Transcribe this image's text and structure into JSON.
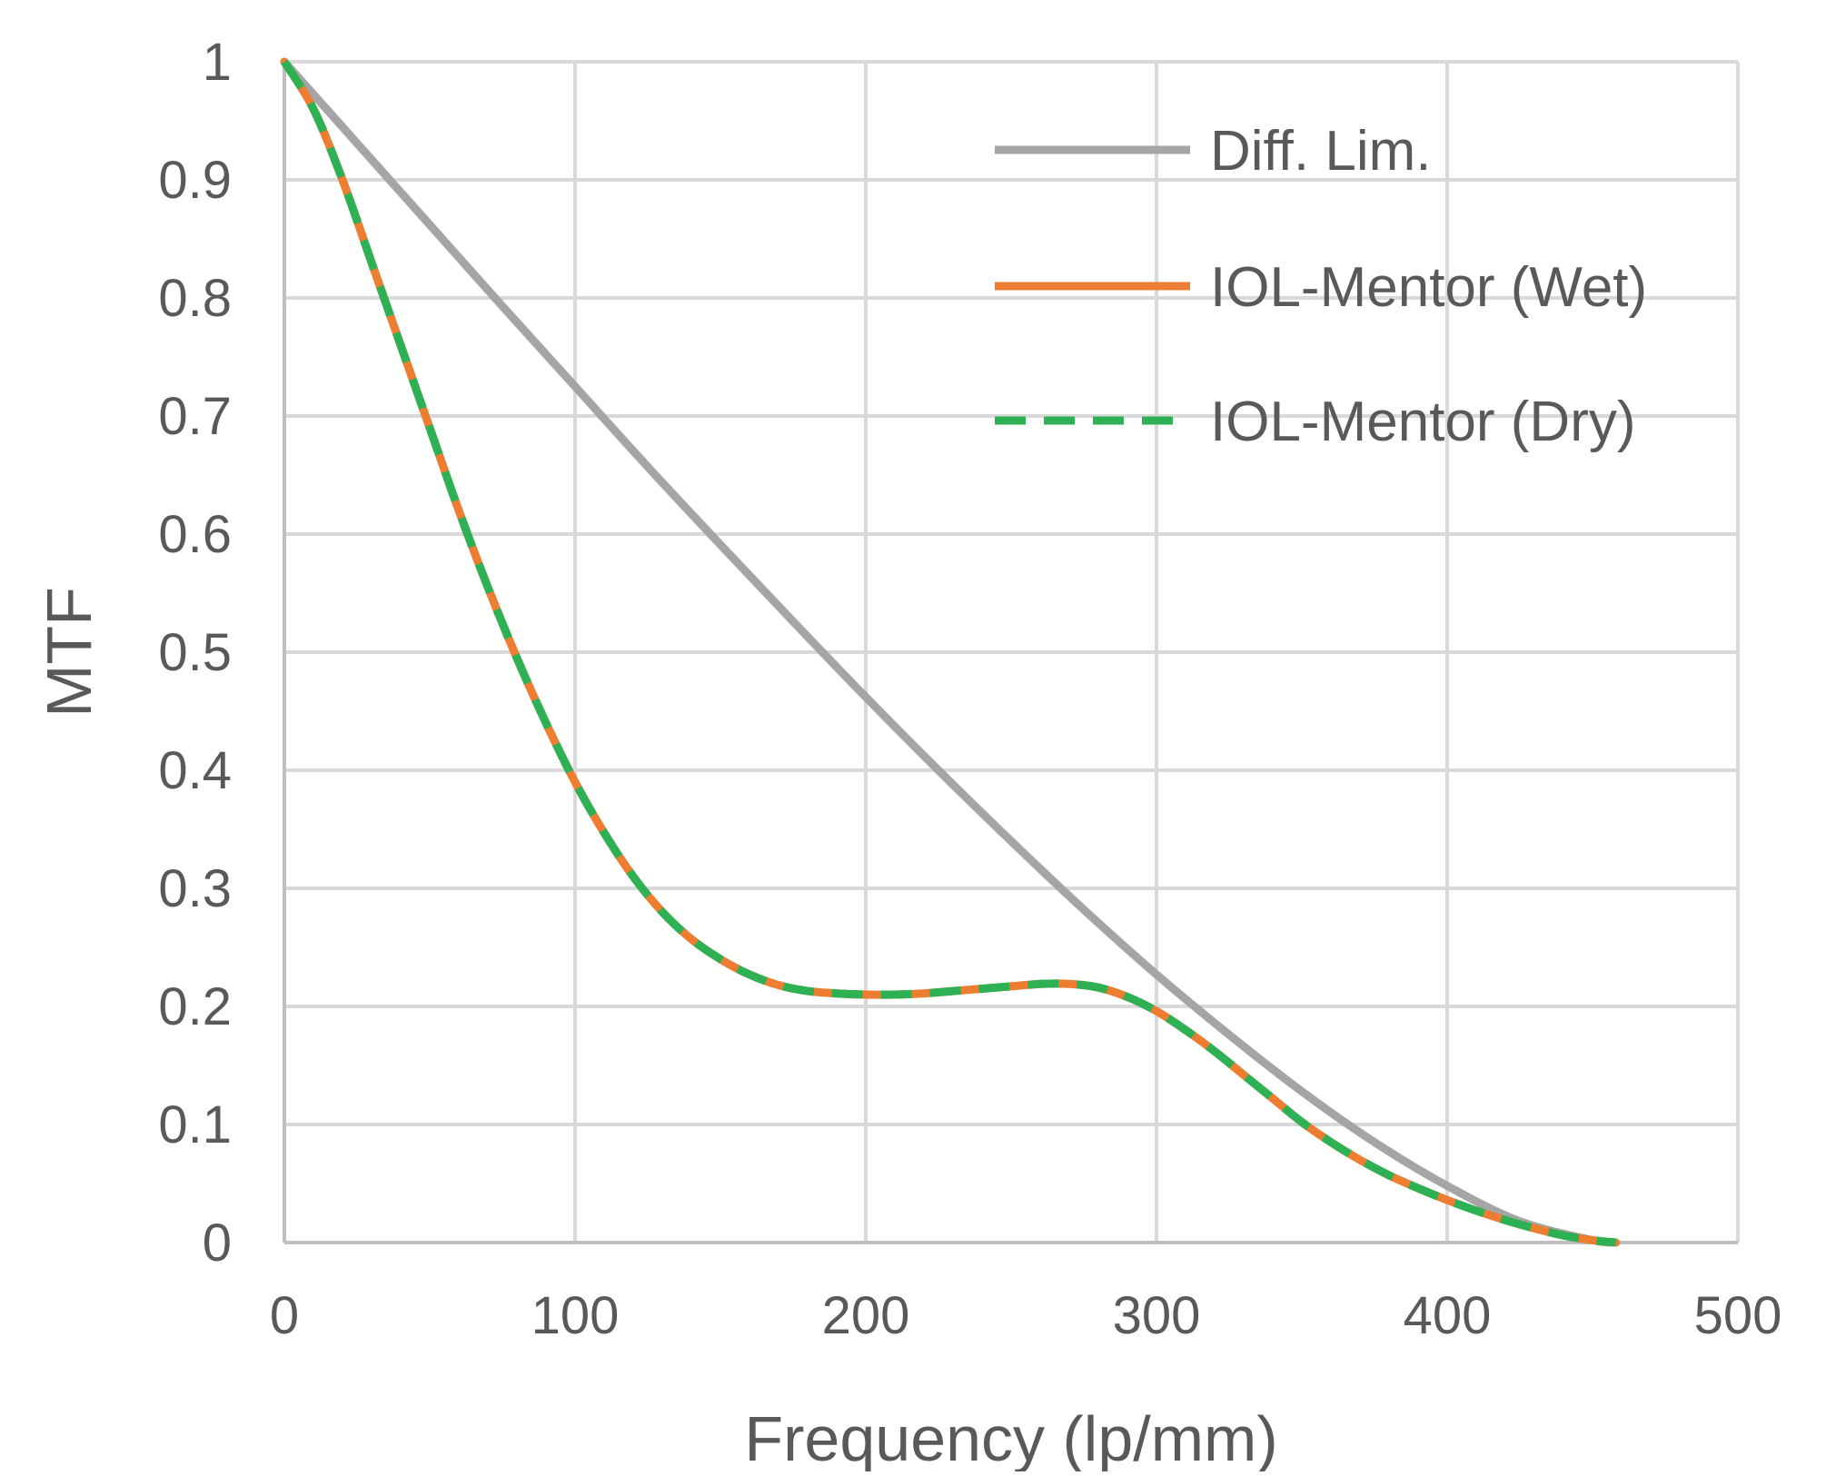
{
  "chart_data": {
    "type": "line",
    "title": "",
    "xlabel": "Frequency (lp/mm)",
    "ylabel": "MTF",
    "xlim": [
      0,
      500
    ],
    "ylim": [
      0,
      1
    ],
    "x_ticks": [
      "0",
      "100",
      "200",
      "300",
      "400",
      "500"
    ],
    "y_ticks": [
      "0",
      "0.1",
      "0.2",
      "0.3",
      "0.4",
      "0.5",
      "0.6",
      "0.7",
      "0.8",
      "0.9",
      "1"
    ],
    "grid": true,
    "legend_position": "top-right",
    "series": [
      {
        "name": "Diff. Lim.",
        "color": "#a5a5a5",
        "style": "solid",
        "x": [
          0,
          25,
          50,
          75,
          100,
          125,
          150,
          175,
          200,
          225,
          250,
          275,
          300,
          325,
          350,
          375,
          400,
          425,
          450,
          458
        ],
        "y": [
          1,
          0.931,
          0.862,
          0.793,
          0.725,
          0.657,
          0.591,
          0.526,
          0.462,
          0.4,
          0.34,
          0.282,
          0.227,
          0.176,
          0.128,
          0.085,
          0.048,
          0.018,
          0.002,
          0
        ]
      },
      {
        "name": "IOL-Mentor (Wet)",
        "color": "#ed7d31",
        "style": "solid",
        "x": [
          0,
          10,
          20,
          30,
          40,
          50,
          60,
          70,
          80,
          90,
          100,
          110,
          120,
          130,
          140,
          150,
          160,
          170,
          180,
          190,
          200,
          210,
          220,
          230,
          240,
          250,
          260,
          270,
          280,
          290,
          300,
          310,
          320,
          330,
          340,
          350,
          360,
          370,
          380,
          390,
          400,
          410,
          420,
          430,
          440,
          450,
          458
        ],
        "y": [
          1,
          0.96,
          0.9,
          0.83,
          0.76,
          0.69,
          0.62,
          0.555,
          0.495,
          0.44,
          0.39,
          0.347,
          0.31,
          0.28,
          0.257,
          0.24,
          0.227,
          0.218,
          0.213,
          0.211,
          0.21,
          0.21,
          0.211,
          0.213,
          0.215,
          0.217,
          0.219,
          0.219,
          0.216,
          0.208,
          0.196,
          0.18,
          0.162,
          0.142,
          0.122,
          0.102,
          0.085,
          0.07,
          0.057,
          0.046,
          0.036,
          0.027,
          0.019,
          0.012,
          0.006,
          0.002,
          0
        ]
      },
      {
        "name": "IOL-Mentor (Dry)",
        "color": "#2eb155",
        "style": "dashed",
        "x": [
          0,
          10,
          20,
          30,
          40,
          50,
          60,
          70,
          80,
          90,
          100,
          110,
          120,
          130,
          140,
          150,
          160,
          170,
          180,
          190,
          200,
          210,
          220,
          230,
          240,
          250,
          260,
          270,
          280,
          290,
          300,
          310,
          320,
          330,
          340,
          350,
          360,
          370,
          380,
          390,
          400,
          410,
          420,
          430,
          440,
          450,
          458
        ],
        "y": [
          1,
          0.96,
          0.9,
          0.83,
          0.76,
          0.69,
          0.62,
          0.555,
          0.495,
          0.44,
          0.39,
          0.347,
          0.31,
          0.28,
          0.257,
          0.24,
          0.227,
          0.218,
          0.213,
          0.211,
          0.21,
          0.21,
          0.211,
          0.213,
          0.215,
          0.217,
          0.219,
          0.219,
          0.216,
          0.208,
          0.196,
          0.18,
          0.162,
          0.142,
          0.122,
          0.102,
          0.085,
          0.07,
          0.057,
          0.046,
          0.036,
          0.027,
          0.019,
          0.012,
          0.006,
          0.002,
          0
        ]
      }
    ]
  }
}
